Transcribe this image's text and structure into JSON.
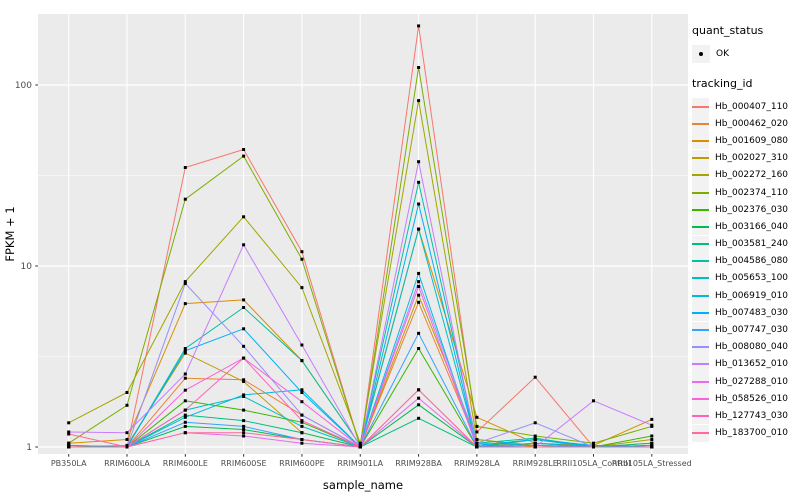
{
  "figure": {
    "panel_bg": "#EBEBEB",
    "grid_color": "#FFFFFF",
    "tick_text_color": "#4D4D4D",
    "tick_mark_color": "#333333",
    "point_color": "#000000",
    "legend_key_bg": "#F2F2F2"
  },
  "legend": {
    "quant_status": {
      "title": "quant_status",
      "items": [
        {
          "label": "OK",
          "symbol": "point"
        }
      ]
    },
    "tracking_id": {
      "title": "tracking_id"
    }
  },
  "chart_data": {
    "type": "line",
    "xlabel": "sample_name",
    "ylabel": "FPKM + 1",
    "y_scale": "log10",
    "y_ticks": [
      1,
      10,
      100
    ],
    "y_tick_labels": [
      "1",
      "10",
      "100"
    ],
    "y_minor_ticks": [
      3.1623,
      31.623
    ],
    "ylim": [
      1,
      250
    ],
    "grid": true,
    "legend_position": "right",
    "categories": [
      "PB350LA",
      "RRIM600LA",
      "RRIM600LE",
      "RRIM600SE",
      "RRIM600PE",
      "RRIM901LA",
      "RRIM928BA",
      "RRIM928LA",
      "RRIM928LE",
      "RRII105LA_Control",
      "RRII105LA_Stressed"
    ],
    "series": [
      {
        "name": "Hb_000407_110",
        "color": "#F8766D",
        "values": [
          1.02,
          1.0,
          35.0,
          44.0,
          12.0,
          1.0,
          212,
          1.21,
          2.43,
          1.0,
          1.0
        ]
      },
      {
        "name": "Hb_000462_020",
        "color": "#EA8331",
        "values": [
          1.0,
          1.0,
          2.4,
          2.35,
          1.5,
          1.0,
          6.3,
          1.05,
          1.02,
          1.0,
          1.02
        ]
      },
      {
        "name": "Hb_001609_080",
        "color": "#D89000",
        "values": [
          1.05,
          1.1,
          6.2,
          6.5,
          3.0,
          1.02,
          16.0,
          1.46,
          1.05,
          1.02,
          1.42
        ]
      },
      {
        "name": "Hb_002027_310",
        "color": "#C09B00",
        "values": [
          1.0,
          1.02,
          3.3,
          2.3,
          1.2,
          1.0,
          6.9,
          1.1,
          1.0,
          1.0,
          1.05
        ]
      },
      {
        "name": "Hb_002272_160",
        "color": "#A3A500",
        "values": [
          1.36,
          2.0,
          8.2,
          18.7,
          7.6,
          1.05,
          82.0,
          1.1,
          1.02,
          1.0,
          1.1
        ]
      },
      {
        "name": "Hb_002374_110",
        "color": "#7CAE00",
        "values": [
          1.05,
          1.7,
          23.4,
          40.5,
          10.9,
          1.0,
          125,
          1.3,
          1.15,
          1.05,
          1.3
        ]
      },
      {
        "name": "Hb_002376_030",
        "color": "#39B600",
        "values": [
          1.0,
          1.0,
          1.8,
          1.6,
          1.37,
          1.0,
          3.5,
          1.0,
          1.1,
          1.0,
          1.15
        ]
      },
      {
        "name": "Hb_003166_040",
        "color": "#00BB4E",
        "values": [
          1.0,
          1.0,
          1.3,
          1.25,
          1.1,
          1.0,
          1.71,
          1.0,
          1.05,
          1.0,
          1.0
        ]
      },
      {
        "name": "Hb_003581_240",
        "color": "#00BF7D",
        "values": [
          1.0,
          1.0,
          1.5,
          1.4,
          1.2,
          1.0,
          1.44,
          1.0,
          1.1,
          1.0,
          1.05
        ]
      },
      {
        "name": "Hb_004586_080",
        "color": "#00C1A3",
        "values": [
          1.02,
          1.0,
          3.5,
          5.9,
          3.0,
          1.02,
          29.0,
          1.05,
          1.12,
          1.0,
          1.02
        ]
      },
      {
        "name": "Hb_005653_100",
        "color": "#00BFC4",
        "values": [
          1.0,
          1.0,
          1.6,
          1.9,
          1.3,
          1.0,
          16.0,
          1.02,
          1.1,
          1.0,
          1.0
        ]
      },
      {
        "name": "Hb_006919_010",
        "color": "#00BAE0",
        "values": [
          1.0,
          1.0,
          1.46,
          1.94,
          2.07,
          1.0,
          9.1,
          1.0,
          1.05,
          1.0,
          1.0
        ]
      },
      {
        "name": "Hb_007483_030",
        "color": "#00B0F6",
        "values": [
          1.0,
          1.0,
          3.4,
          4.5,
          2.0,
          1.0,
          22.0,
          1.02,
          1.1,
          1.02,
          1.0
        ]
      },
      {
        "name": "Hb_007747_030",
        "color": "#35A2FF",
        "values": [
          1.0,
          1.0,
          1.37,
          1.3,
          1.1,
          1.0,
          4.25,
          1.0,
          1.02,
          1.0,
          1.0
        ]
      },
      {
        "name": "Hb_008080_040",
        "color": "#9590FF",
        "values": [
          1.0,
          1.0,
          8.0,
          3.6,
          1.5,
          1.0,
          8.2,
          1.05,
          1.36,
          1.0,
          1.0
        ]
      },
      {
        "name": "Hb_013652_010",
        "color": "#C77CFF",
        "values": [
          1.21,
          1.2,
          2.53,
          13.1,
          3.66,
          1.0,
          37.7,
          1.0,
          1.0,
          1.8,
          1.32
        ]
      },
      {
        "name": "Hb_027288_010",
        "color": "#E76BF3",
        "values": [
          1.0,
          1.0,
          1.2,
          1.15,
          1.05,
          1.0,
          1.86,
          1.0,
          1.0,
          1.0,
          1.0
        ]
      },
      {
        "name": "Hb_058526_010",
        "color": "#FA62DB",
        "values": [
          1.0,
          1.0,
          2.06,
          3.1,
          1.78,
          1.0,
          7.7,
          1.0,
          1.0,
          1.0,
          1.0
        ]
      },
      {
        "name": "Hb_127743_030",
        "color": "#FF62BC",
        "values": [
          1.0,
          1.0,
          1.6,
          3.1,
          1.4,
          1.0,
          2.07,
          1.0,
          1.0,
          1.0,
          1.0
        ]
      },
      {
        "name": "Hb_183700_010",
        "color": "#FF6A98",
        "values": [
          1.18,
          1.0,
          1.2,
          1.2,
          1.1,
          1.0,
          2.07,
          1.0,
          1.0,
          1.0,
          1.0
        ]
      }
    ]
  }
}
